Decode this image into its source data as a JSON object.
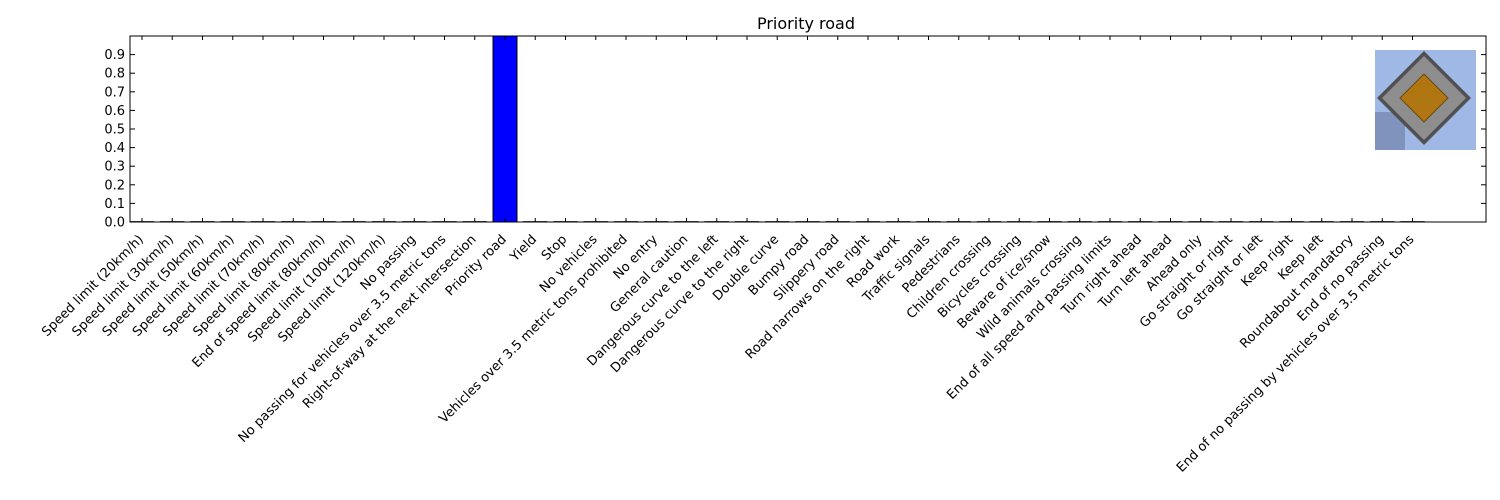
{
  "chart_data": {
    "type": "bar",
    "title": "Priority road",
    "xlabel": "",
    "ylabel": "",
    "ylim": [
      0,
      1.0
    ],
    "yticks": [
      0.0,
      0.1,
      0.2,
      0.3,
      0.4,
      0.5,
      0.6,
      0.7,
      0.8,
      0.9
    ],
    "grid": false,
    "bar_color": "#0000ff",
    "categories": [
      "Speed limit (20km/h)",
      "Speed limit (30km/h)",
      "Speed limit (50km/h)",
      "Speed limit (60km/h)",
      "Speed limit (70km/h)",
      "Speed limit (80km/h)",
      "End of speed limit (80km/h)",
      "Speed limit (100km/h)",
      "Speed limit (120km/h)",
      "No passing",
      "No passing for vehicles over 3.5 metric tons",
      "Right-of-way at the next intersection",
      "Priority road",
      "Yield",
      "Stop",
      "No vehicles",
      "Vehicles over 3.5 metric tons prohibited",
      "No entry",
      "General caution",
      "Dangerous curve to the left",
      "Dangerous curve to the right",
      "Double curve",
      "Bumpy road",
      "Slippery road",
      "Road narrows on the right",
      "Road work",
      "Traffic signals",
      "Pedestrians",
      "Children crossing",
      "Bicycles crossing",
      "Beware of ice/snow",
      "Wild animals crossing",
      "End of all speed and passing limits",
      "Turn right ahead",
      "Turn left ahead",
      "Ahead only",
      "Go straight or right",
      "Go straight or left",
      "Keep right",
      "Keep left",
      "Roundabout mandatory",
      "End of no passing",
      "End of no passing by vehicles over 3.5 metric tons"
    ],
    "values": [
      0,
      0,
      0,
      0,
      0,
      0,
      0,
      0,
      0,
      0,
      0.002,
      0.002,
      1.0,
      0,
      0,
      0.002,
      0.002,
      0,
      0,
      0.002,
      0.002,
      0,
      0,
      0,
      0,
      0.002,
      0.002,
      0,
      0,
      0,
      0.002,
      0.002,
      0.002,
      0,
      0,
      0,
      0,
      0,
      0,
      0.002,
      0.002,
      0,
      0
    ],
    "inset_image": {
      "icon": "priority-road-sign-icon",
      "sky_color": "#9fb8e6",
      "diamond_border_color": "#8e8e8e",
      "diamond_fill_color": "#b07612"
    }
  }
}
